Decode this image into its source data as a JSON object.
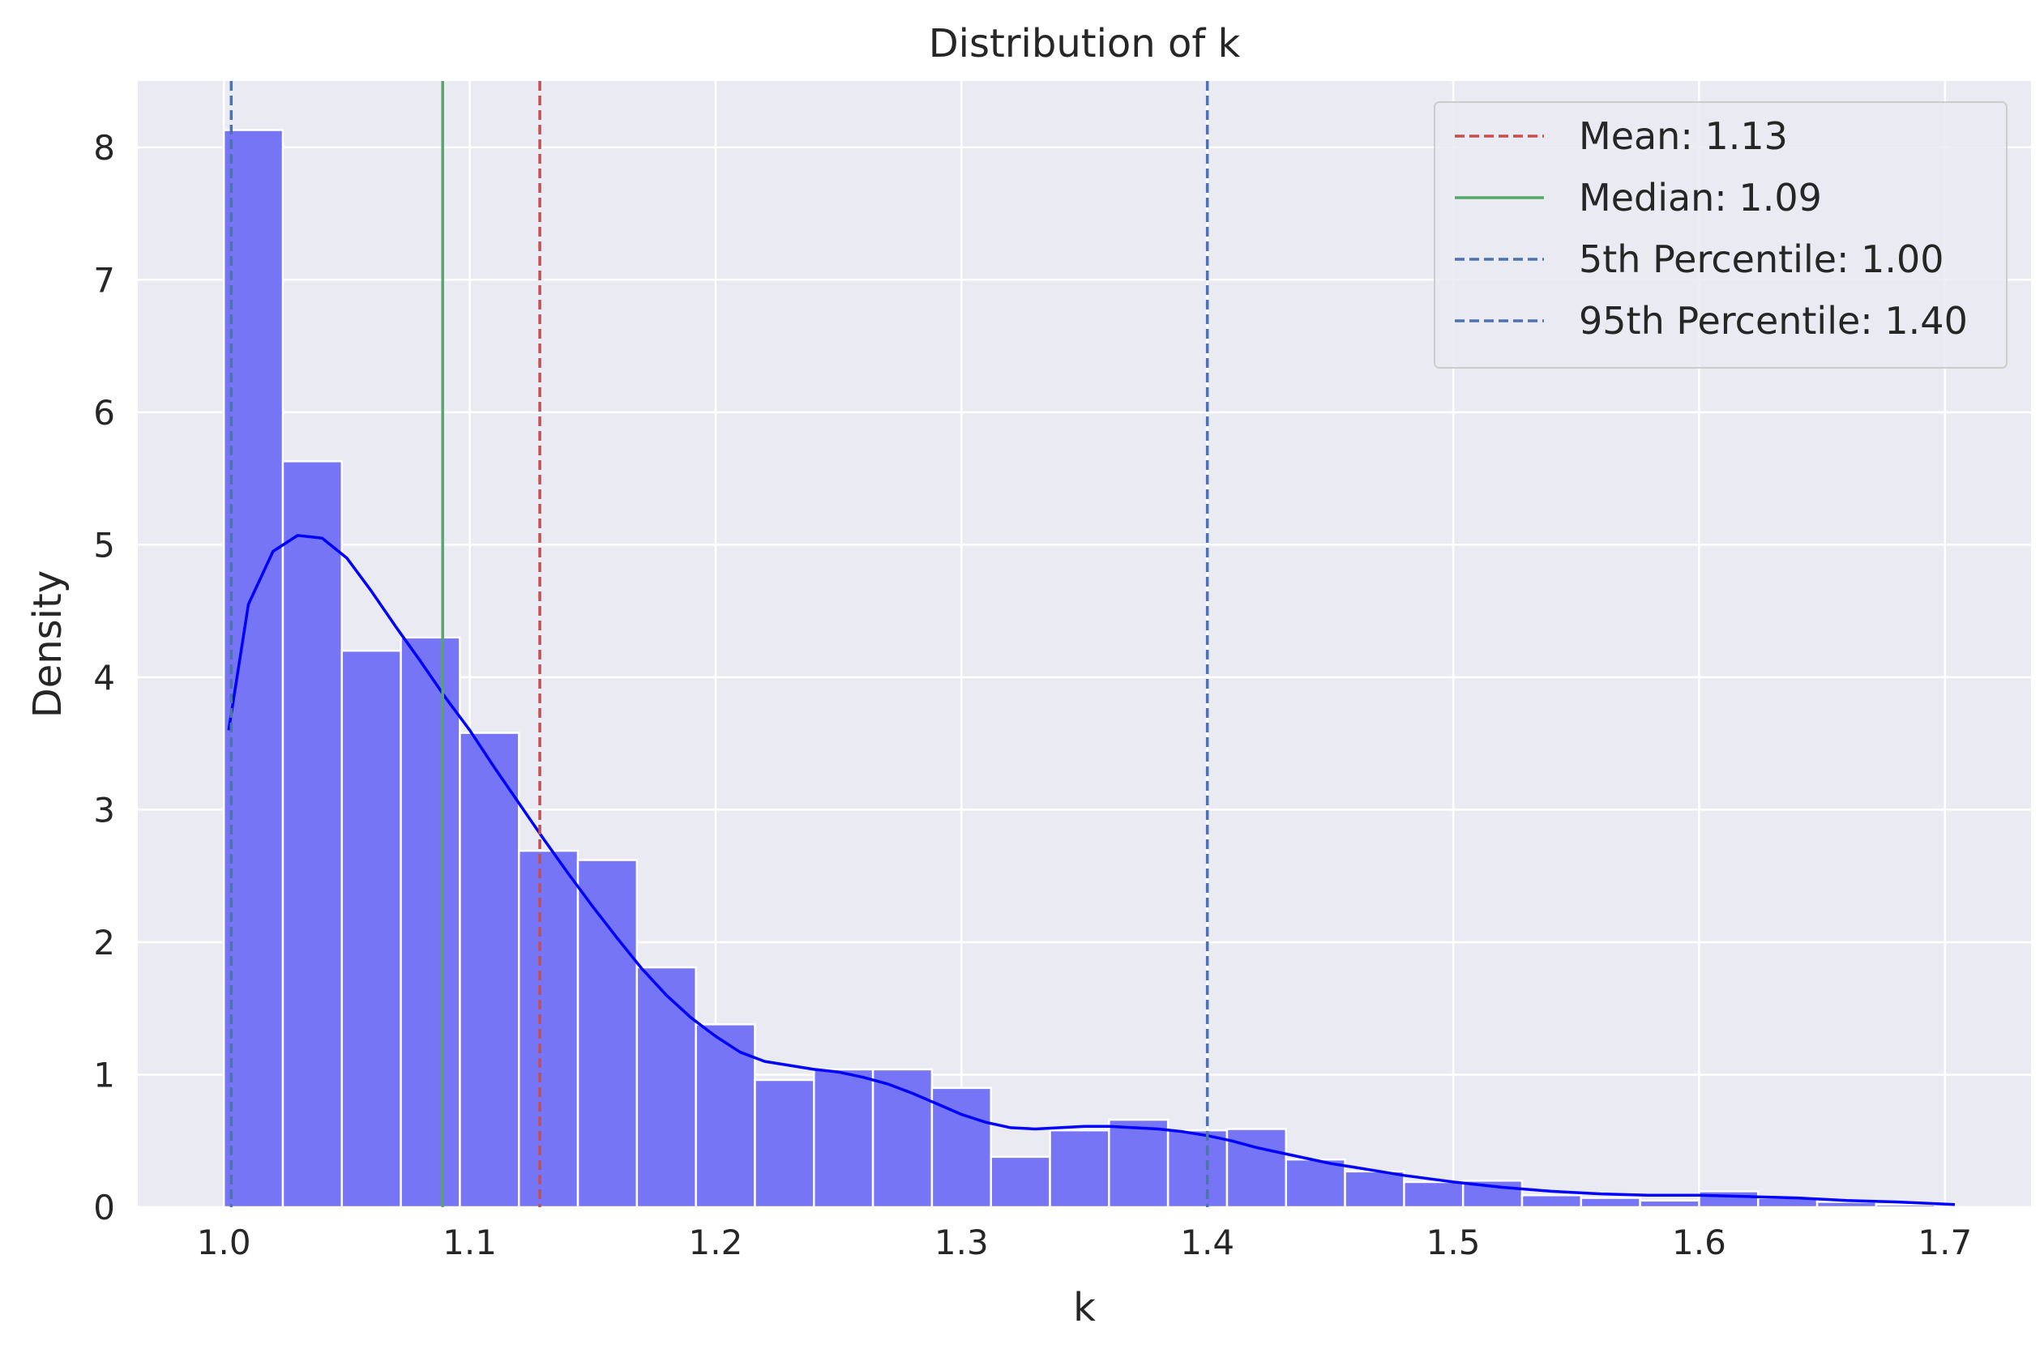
{
  "chart_data": {
    "type": "histogram",
    "title": "Distribution of k",
    "xlabel": "k",
    "ylabel": "Density",
    "xlim": [
      0.965,
      1.735
    ],
    "ylim": [
      0,
      8.5
    ],
    "x_ticks": [
      1.0,
      1.1,
      1.2,
      1.3,
      1.4,
      1.5,
      1.6,
      1.7
    ],
    "x_tick_labels": [
      "1.0",
      "1.1",
      "1.2",
      "1.3",
      "1.4",
      "1.5",
      "1.6",
      "1.7"
    ],
    "y_ticks": [
      0,
      1,
      2,
      3,
      4,
      5,
      6,
      7,
      8
    ],
    "y_tick_labels": [
      "0",
      "1",
      "2",
      "3",
      "4",
      "5",
      "6",
      "7",
      "8"
    ],
    "grid": true,
    "bars": {
      "color": "#7575f5",
      "edge_color": "#ffffff",
      "bin_edges": [
        1.0,
        1.024,
        1.048,
        1.072,
        1.096,
        1.12,
        1.144,
        1.168,
        1.192,
        1.216,
        1.24,
        1.264,
        1.288,
        1.312,
        1.336,
        1.36,
        1.384,
        1.408,
        1.432,
        1.456,
        1.48,
        1.504,
        1.528,
        1.552,
        1.576,
        1.6,
        1.624,
        1.648,
        1.672,
        1.696
      ],
      "densities": [
        8.13,
        5.63,
        4.2,
        4.3,
        3.58,
        2.69,
        2.62,
        1.81,
        1.38,
        0.96,
        1.04,
        1.04,
        0.9,
        0.38,
        0.58,
        0.66,
        0.58,
        0.59,
        0.36,
        0.27,
        0.19,
        0.2,
        0.09,
        0.07,
        0.05,
        0.12,
        0.07,
        0.04,
        0.02
      ]
    },
    "kde": {
      "color": "#0000ff",
      "x": [
        1.002,
        1.01,
        1.02,
        1.03,
        1.04,
        1.05,
        1.06,
        1.07,
        1.08,
        1.09,
        1.1,
        1.11,
        1.12,
        1.13,
        1.14,
        1.15,
        1.16,
        1.17,
        1.18,
        1.19,
        1.2,
        1.21,
        1.22,
        1.23,
        1.24,
        1.25,
        1.26,
        1.27,
        1.28,
        1.29,
        1.3,
        1.31,
        1.32,
        1.33,
        1.34,
        1.35,
        1.36,
        1.37,
        1.38,
        1.39,
        1.4,
        1.41,
        1.42,
        1.43,
        1.44,
        1.45,
        1.46,
        1.47,
        1.48,
        1.5,
        1.52,
        1.54,
        1.56,
        1.58,
        1.6,
        1.62,
        1.64,
        1.66,
        1.68,
        1.704
      ],
      "y": [
        3.6,
        4.55,
        4.95,
        5.07,
        5.05,
        4.9,
        4.65,
        4.38,
        4.12,
        3.85,
        3.6,
        3.32,
        3.05,
        2.78,
        2.52,
        2.27,
        2.03,
        1.8,
        1.6,
        1.43,
        1.29,
        1.17,
        1.1,
        1.07,
        1.04,
        1.02,
        0.98,
        0.93,
        0.86,
        0.78,
        0.7,
        0.64,
        0.6,
        0.59,
        0.6,
        0.61,
        0.61,
        0.6,
        0.59,
        0.57,
        0.54,
        0.5,
        0.45,
        0.41,
        0.37,
        0.33,
        0.3,
        0.27,
        0.24,
        0.19,
        0.15,
        0.12,
        0.1,
        0.09,
        0.09,
        0.08,
        0.07,
        0.05,
        0.04,
        0.02
      ]
    },
    "reference_lines": [
      {
        "label": "Mean: 1.13",
        "x": 1.1285,
        "color": "#c44e52",
        "style": "dashed"
      },
      {
        "label": "Median: 1.09",
        "x": 1.089,
        "color": "#55a868",
        "style": "solid"
      },
      {
        "label": "5th Percentile: 1.00",
        "x": 1.003,
        "color": "#4c72b0",
        "style": "dashed"
      },
      {
        "label": "95th Percentile: 1.40",
        "x": 1.4,
        "color": "#4c72b0",
        "style": "dashed"
      }
    ],
    "legend_position": "top-right"
  }
}
